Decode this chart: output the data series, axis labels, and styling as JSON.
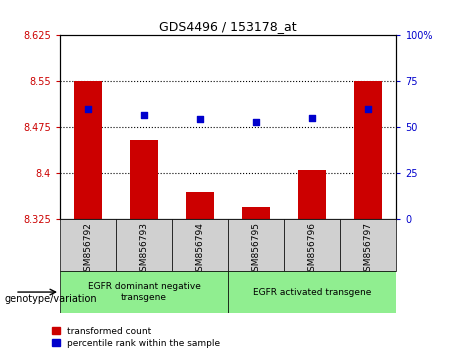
{
  "title": "GDS4496 / 153178_at",
  "categories": [
    "GSM856792",
    "GSM856793",
    "GSM856794",
    "GSM856795",
    "GSM856796",
    "GSM856797"
  ],
  "bar_values": [
    8.55,
    8.455,
    8.37,
    8.345,
    8.405,
    8.55
  ],
  "bar_bottom": 8.325,
  "dot_values_left": [
    8.505,
    8.495,
    8.488,
    8.484,
    8.49,
    8.505
  ],
  "bar_color": "#cc0000",
  "dot_color": "#0000cc",
  "ylim_left": [
    8.325,
    8.625
  ],
  "ylim_right": [
    0,
    100
  ],
  "yticks_left": [
    8.325,
    8.4,
    8.475,
    8.55,
    8.625
  ],
  "yticks_right": [
    0,
    25,
    50,
    75,
    100
  ],
  "grid_values": [
    8.4,
    8.475,
    8.55
  ],
  "group1_label": "EGFR dominant negative\ntransgene",
  "group2_label": "EGFR activated transgene",
  "group1_indices": [
    0,
    1,
    2
  ],
  "group2_indices": [
    3,
    4,
    5
  ],
  "group_bg_color": "#90EE90",
  "sample_bg_color": "#d0d0d0",
  "legend_red_label": "transformed count",
  "legend_blue_label": "percentile rank within the sample",
  "genotype_label": "genotype/variation"
}
